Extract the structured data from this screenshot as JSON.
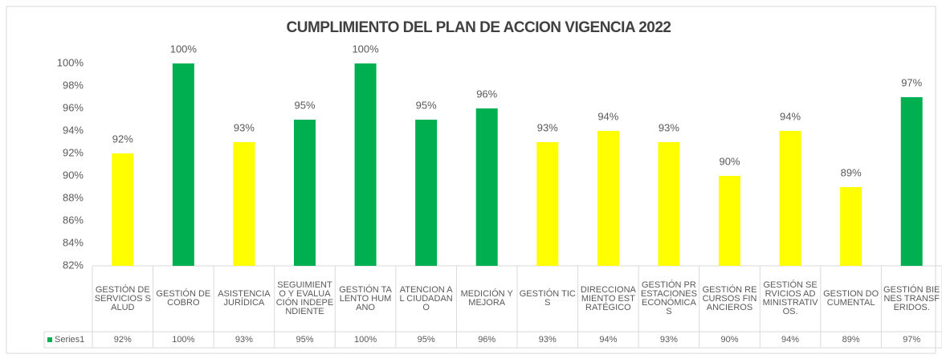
{
  "chart_data": {
    "type": "bar",
    "title": "CUMPLIMIENTO DEL PLAN DE ACCION VIGENCIA 2022",
    "categories": [
      "GESTIÓN DE SERVICIOS SALUD",
      "GESTIÓN DE COBRO",
      "ASISTENCIA JURÍDICA",
      "SEGUIMIENTO Y EVALUACIÓN INDEPENDIENTE",
      "GESTIÓN TALENTO HUMANO",
      "ATENCION AL CIUDADANO",
      "MEDICIÓN Y MEJORA",
      "GESTIÓN TICS",
      "DIRECCIONAMIENTO ESTRATÉGICO",
      "GESTIÓN PRESTACIONES ECONÓMICAS",
      "GESTIÓN RECURSOS FINANCIEROS",
      "GESTIÓN SERVICIOS ADMINISTRATIVOS.",
      "GESTION DOCUMENTAL",
      "GESTIÓN BIENES TRANSFERIDOS."
    ],
    "series": [
      {
        "name": "Series1",
        "color": "#00b050",
        "colors": [
          "#ffff00",
          "#00b050",
          "#ffff00",
          "#00b050",
          "#00b050",
          "#00b050",
          "#00b050",
          "#ffff00",
          "#ffff00",
          "#ffff00",
          "#ffff00",
          "#ffff00",
          "#ffff00",
          "#00b050"
        ],
        "values": [
          92,
          100,
          93,
          95,
          100,
          95,
          96,
          93,
          94,
          93,
          90,
          94,
          89,
          97
        ],
        "value_labels": [
          "92%",
          "100%",
          "93%",
          "95%",
          "100%",
          "95%",
          "96%",
          "93%",
          "94%",
          "93%",
          "90%",
          "94%",
          "89%",
          "97%"
        ]
      }
    ],
    "ylim": [
      82,
      100
    ],
    "yticks": [
      {
        "value": 82,
        "label": "82%"
      },
      {
        "value": 84,
        "label": "84%"
      },
      {
        "value": 86,
        "label": "86%"
      },
      {
        "value": 88,
        "label": "88%"
      },
      {
        "value": 90,
        "label": "90%"
      },
      {
        "value": 92,
        "label": "92%"
      },
      {
        "value": 94,
        "label": "94%"
      },
      {
        "value": 96,
        "label": "96%"
      },
      {
        "value": 98,
        "label": "98%"
      },
      {
        "value": 100,
        "label": "100%"
      }
    ],
    "grid": false
  }
}
